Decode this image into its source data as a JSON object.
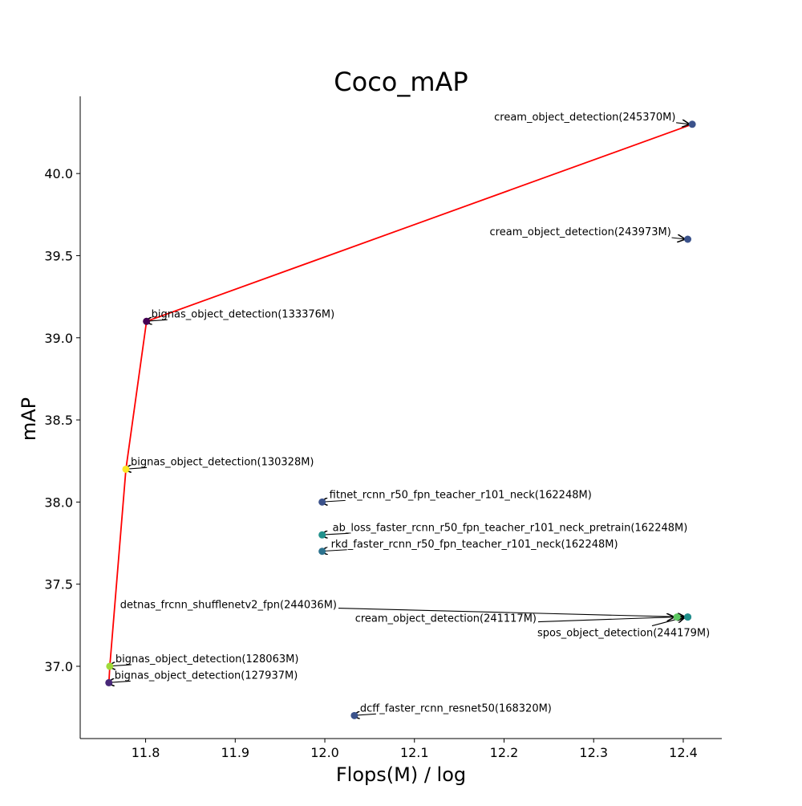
{
  "chart_data": {
    "type": "scatter",
    "title": "Coco_mAP",
    "xlabel": "Flops(M) / log",
    "ylabel": "mAP",
    "xlim": [
      11.727,
      12.443
    ],
    "ylim": [
      36.56,
      40.47
    ],
    "x_ticks": [
      11.8,
      11.9,
      12.0,
      12.1,
      12.2,
      12.3,
      12.4
    ],
    "x_tick_labels": [
      "11.8",
      "11.9",
      "12.0",
      "12.1",
      "12.2",
      "12.3",
      "12.4"
    ],
    "y_ticks": [
      37.0,
      37.5,
      38.0,
      38.5,
      39.0,
      39.5,
      40.0
    ],
    "y_tick_labels": [
      "37.0",
      "37.5",
      "38.0",
      "38.5",
      "39.0",
      "39.5",
      "40.0"
    ],
    "grid": false,
    "points": [
      {
        "label": "cream_object_detection(245370M)",
        "x": 12.41,
        "y": 40.3,
        "color": "#3b528b"
      },
      {
        "label": "cream_object_detection(243973M)",
        "x": 12.405,
        "y": 39.6,
        "color": "#3b528b"
      },
      {
        "label": "bignas_object_detection(133376M)",
        "x": 11.801,
        "y": 39.1,
        "color": "#440154"
      },
      {
        "label": "bignas_object_detection(130328M)",
        "x": 11.778,
        "y": 38.2,
        "color": "#fde725"
      },
      {
        "label": "fitnet_rcnn_r50_fpn_teacher_r101_neck(162248M)",
        "x": 11.997,
        "y": 38.0,
        "color": "#3b528b"
      },
      {
        "label": "ab_loss_faster_rcnn_r50_fpn_teacher_r101_neck_pretrain(162248M)",
        "x": 11.997,
        "y": 37.8,
        "color": "#21918c"
      },
      {
        "label": "rkd_faster_rcnn_r50_fpn_teacher_r101_neck(162248M)",
        "x": 11.997,
        "y": 37.7,
        "color": "#2c728e"
      },
      {
        "label": "detnas_frcnn_shufflenetv2_fpn(244036M)",
        "x": 12.405,
        "y": 37.3,
        "color": "#3b528b"
      },
      {
        "label": "cream_object_detection(241117M)",
        "x": 12.393,
        "y": 37.3,
        "color": "#5ec962"
      },
      {
        "label": "spos_object_detection(244179M)",
        "x": 12.405,
        "y": 37.3,
        "color": "#21918c"
      },
      {
        "label": "bignas_object_detection(128063M)",
        "x": 11.76,
        "y": 37.0,
        "color": "#a0da39"
      },
      {
        "label": "bignas_object_detection(127937M)",
        "x": 11.759,
        "y": 36.9,
        "color": "#482878"
      },
      {
        "label": "dcff_faster_rcnn_resnet50(168320M)",
        "x": 12.033,
        "y": 36.7,
        "color": "#3b528b"
      }
    ],
    "pareto_line": {
      "color": "#ff0000",
      "x": [
        11.759,
        11.76,
        11.778,
        11.801,
        12.41
      ],
      "y": [
        36.9,
        37.0,
        38.2,
        39.1,
        40.3
      ]
    }
  }
}
